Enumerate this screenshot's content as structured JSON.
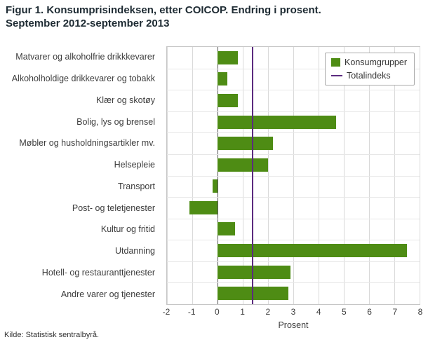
{
  "header": {
    "title_line1": "Figur 1. Konsumprisindeksen, etter COICOP. Endring i prosent.",
    "title_line2": "September 2012-september 2013"
  },
  "footer": {
    "source": "Kilde: Statistisk sentralbyrå."
  },
  "legend": {
    "items": [
      {
        "label": "Konsumgrupper",
        "type": "bar",
        "color": "#4e8c14"
      },
      {
        "label": "Totalindeks",
        "type": "line",
        "color": "#5b2b7f"
      }
    ]
  },
  "chart_data": {
    "type": "bar",
    "orientation": "horizontal",
    "title": "Figur 1. Konsumprisindeksen, etter COICOP. Endring i prosent. September 2012-september 2013",
    "categories": [
      "Matvarer og alkoholfrie drikkkevarer",
      "Alkoholholdige drikkevarer og tobakk",
      "Klær og skotøy",
      "Bolig, lys og brensel",
      "Møbler og husholdningsartikler mv.",
      "Helsepleie",
      "Transport",
      "Post- og teletjenester",
      "Kultur og fritid",
      "Utdanning",
      "Hotell- og restauranttjenester",
      "Andre varer og tjenester"
    ],
    "values": [
      0.8,
      0.4,
      0.8,
      4.7,
      2.2,
      2.0,
      -0.2,
      -1.1,
      0.7,
      7.5,
      2.9,
      2.8
    ],
    "total_index": 1.4,
    "xlabel": "Prosent",
    "xlim": [
      -2,
      8
    ],
    "xticks": [
      -2,
      -1,
      0,
      1,
      2,
      3,
      4,
      5,
      6,
      7,
      8
    ],
    "bar_color": "#4e8c14",
    "line_color": "#5b2b7f",
    "grid": true,
    "legend_position": "top-right"
  }
}
